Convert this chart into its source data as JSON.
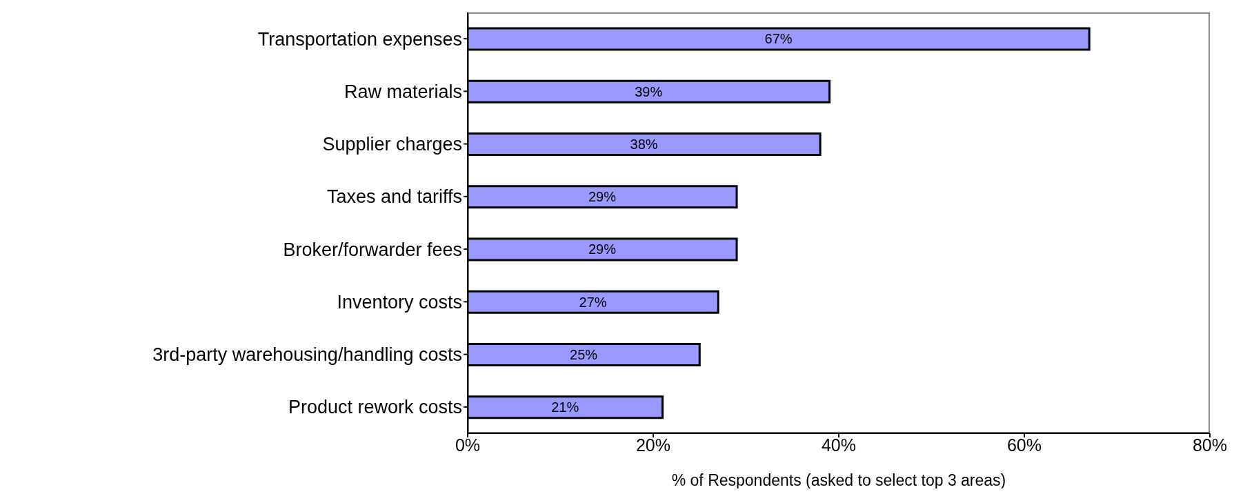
{
  "chart_data": {
    "type": "bar",
    "orientation": "horizontal",
    "xlabel": "% of Respondents (asked to select top 3 areas)",
    "categories": [
      "Transportation expenses",
      "Raw materials",
      "Supplier charges",
      "Taxes and tariffs",
      "Broker/forwarder fees",
      "Inventory costs",
      "3rd-party warehousing/handling costs",
      "Product rework costs"
    ],
    "values": [
      67,
      39,
      38,
      29,
      29,
      27,
      25,
      21
    ],
    "value_labels": [
      "67%",
      "39%",
      "38%",
      "29%",
      "29%",
      "27%",
      "25%",
      "21%"
    ],
    "color": "#9999ff",
    "xlim": [
      0,
      80
    ],
    "xticks": [
      {
        "value": 0,
        "label": "0%"
      },
      {
        "value": 20,
        "label": "20%"
      },
      {
        "value": 40,
        "label": "40%"
      },
      {
        "value": 60,
        "label": "60%"
      },
      {
        "value": 80,
        "label": "80%"
      }
    ],
    "grid": false,
    "legend": false
  }
}
